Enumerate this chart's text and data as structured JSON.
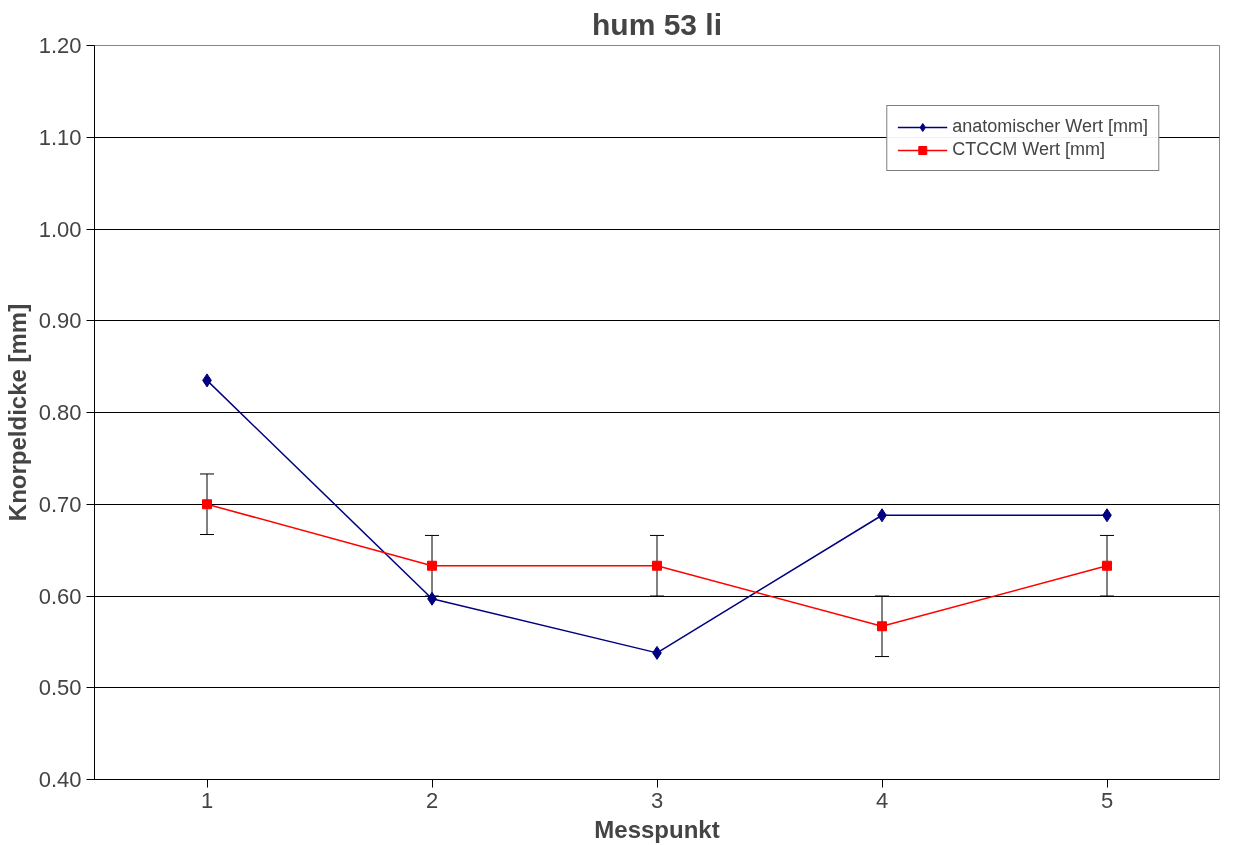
{
  "chart_data": {
    "type": "line",
    "title": "hum 53 li",
    "xlabel": "Messpunkt",
    "ylabel": "Knorpeldicke [mm]",
    "categories": [
      "1",
      "2",
      "3",
      "4",
      "5"
    ],
    "series": [
      {
        "name": "anatomischer Wert [mm]",
        "color": "#000080",
        "marker": "diamond",
        "values": [
          0.835,
          0.597,
          0.538,
          0.688,
          0.688
        ]
      },
      {
        "name": "CTCCM Wert [mm]",
        "color": "#ff0000",
        "marker": "square",
        "values": [
          0.7,
          0.633,
          0.633,
          0.567,
          0.633
        ],
        "errors": [
          0.033,
          0.033,
          0.033,
          0.033,
          0.033
        ]
      }
    ],
    "ylim": [
      0.4,
      1.2
    ],
    "yticks": [
      {
        "value": 0.4,
        "label": "0.40"
      },
      {
        "value": 0.5,
        "label": "0.50"
      },
      {
        "value": 0.6,
        "label": "0.60"
      },
      {
        "value": 0.7,
        "label": "0.70"
      },
      {
        "value": 0.8,
        "label": "0.80"
      },
      {
        "value": 0.9,
        "label": "0.90"
      },
      {
        "value": 1.0,
        "label": "1.00"
      },
      {
        "value": 1.1,
        "label": "1.10"
      },
      {
        "value": 1.2,
        "label": "1.20"
      }
    ],
    "grid": "y",
    "legend": "top right",
    "line_style": "solid"
  }
}
